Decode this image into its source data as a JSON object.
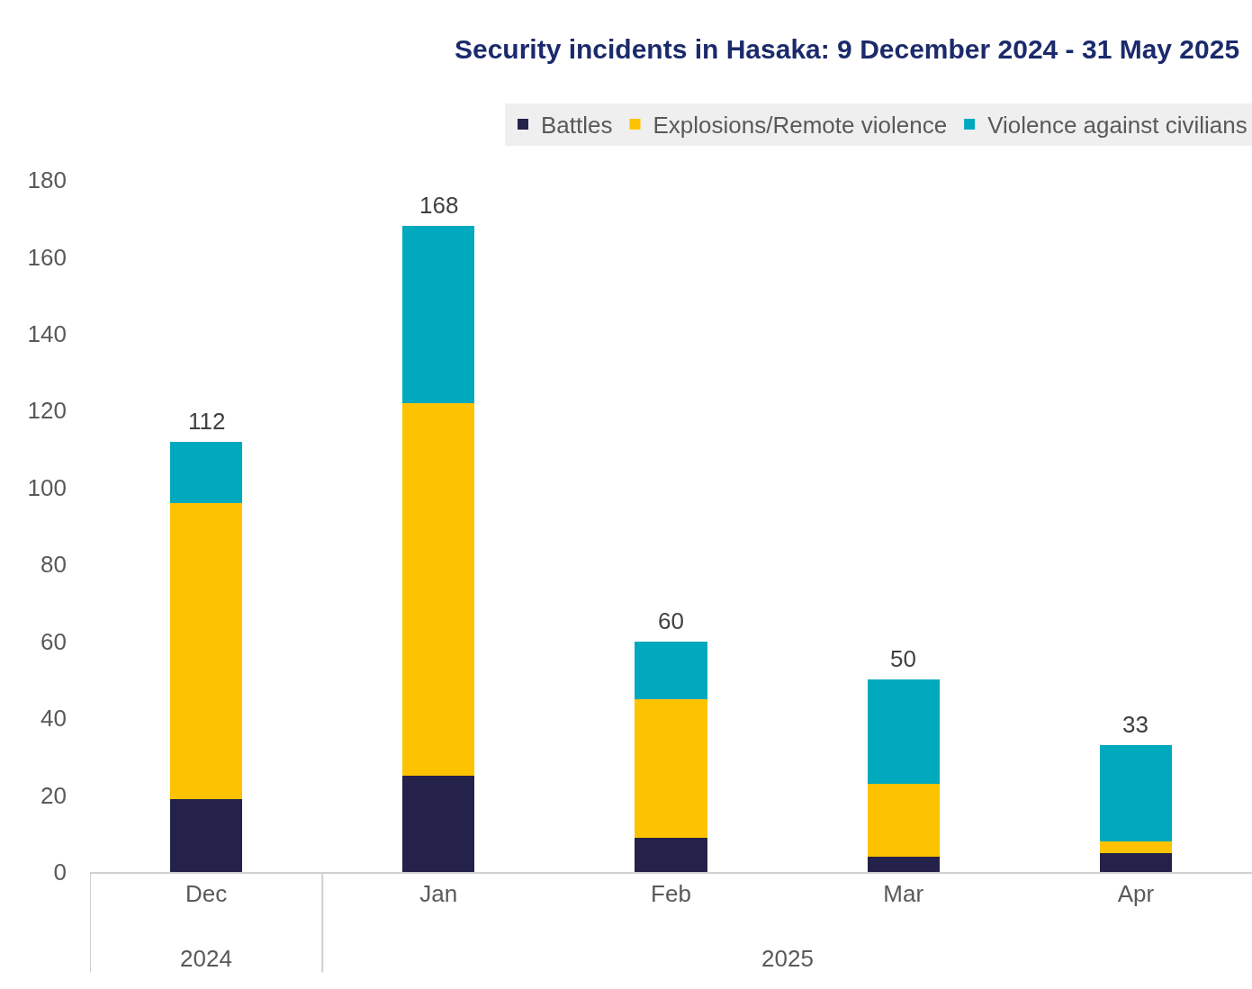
{
  "chart_data": {
    "type": "bar",
    "title": "Security incidents in Hasaka: 9 December 2024 - 31 May 2025",
    "categories": [
      "Dec",
      "Jan",
      "Feb",
      "Mar",
      "Apr"
    ],
    "stacked": true,
    "series": [
      {
        "name": "Battles",
        "color": "#24224a",
        "values": [
          19,
          25,
          9,
          4,
          5
        ]
      },
      {
        "name": "Explosions/Remote violence",
        "color": "#fdc300",
        "values": [
          77,
          97,
          36,
          19,
          3
        ]
      },
      {
        "name": "Violence against civilians",
        "color": "#00a9bd",
        "values": [
          16,
          46,
          15,
          27,
          25
        ]
      }
    ],
    "totals": [
      "112",
      "168",
      "60",
      "50",
      "33"
    ],
    "annotations": [
      "2024",
      "2025"
    ],
    "ylim": [
      0,
      180
    ],
    "yticks": [
      0,
      20,
      40,
      60,
      80,
      100,
      120,
      140,
      160,
      180
    ],
    "legend": "top"
  }
}
